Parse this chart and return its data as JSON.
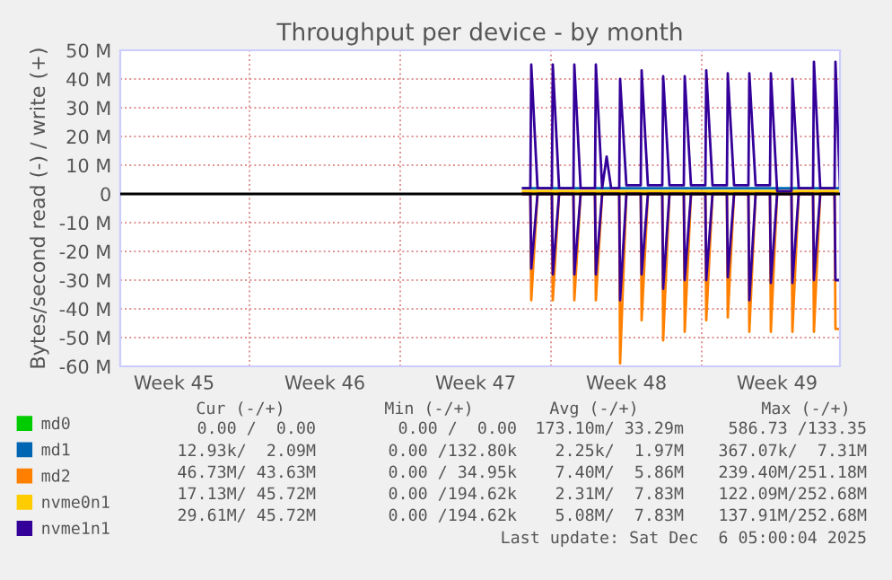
{
  "chart_data": {
    "type": "line",
    "title": "Throughput per device - by month",
    "ylabel": "Bytes/second read (-) / write (+)",
    "xlim": [
      "2025-11-02T19:00",
      "2025-12-06T05:00"
    ],
    "ylim": [
      -60,
      50
    ],
    "xticks": [
      {
        "value": "2025-11-05T07:00",
        "label": "Week 45"
      },
      {
        "value": "2025-11-08T19:00",
        "label": null
      },
      {
        "value": "2025-11-12T07:00",
        "label": "Week 46"
      },
      {
        "value": "2025-11-15T19:00",
        "label": null
      },
      {
        "value": "2025-11-19T07:00",
        "label": "Week 47"
      },
      {
        "value": "2025-11-22T19:00",
        "label": null
      },
      {
        "value": "2025-11-26T07:00",
        "label": "Week 48"
      },
      {
        "value": "2025-11-29T19:00",
        "label": null
      },
      {
        "value": "2025-12-03T07:00",
        "label": "Week 49"
      }
    ],
    "yticks": [
      {
        "value": -60,
        "label": "-60 M"
      },
      {
        "value": -50,
        "label": "-50 M"
      },
      {
        "value": -40,
        "label": "-40 M"
      },
      {
        "value": -30,
        "label": "-30 M"
      },
      {
        "value": -20,
        "label": "-20 M"
      },
      {
        "value": -10,
        "label": "-10 M"
      },
      0,
      {
        "value": 10,
        "label": "10 M"
      },
      {
        "value": 20,
        "label": "20 M"
      },
      {
        "value": 30,
        "label": "30 M"
      },
      {
        "value": 40,
        "label": "40 M"
      },
      {
        "value": 50,
        "label": "50 M"
      }
    ],
    "grid": true,
    "legend": "bottom left",
    "ref_lines": [
      {
        "axis": "y",
        "value": 0,
        "color": "#000000"
      }
    ],
    "series": [
      {
        "name": "md0",
        "color": "#00cc00"
      },
      {
        "name": "md1",
        "color": "#0066b3",
        "x": [
          "2025-11-21T12:00",
          "2025-12-06T05:00"
        ],
        "values": [
          2,
          2
        ]
      },
      {
        "name": "md2",
        "color": "#ff8000",
        "x": [
          "2025-11-21T12:00",
          "2025-12-06T05:00"
        ],
        "values": [
          0.5,
          0.5
        ]
      },
      {
        "name": "nvme0n1",
        "color": "#ffcc00",
        "x": [
          "2025-11-21T12:00",
          "2025-12-06T05:00"
        ],
        "values": [
          1,
          1
        ]
      },
      {
        "name": "nvme1n1",
        "color": "#330099",
        "x": [
          "2025-11-21T12:00",
          "2025-11-21T20:00",
          "2025-11-21T21:00",
          "2025-11-22T04:00",
          "2025-11-22T20:00",
          "2025-11-22T21:00",
          "2025-11-23T04:00",
          "2025-11-23T20:00",
          "2025-11-23T21:00",
          "2025-11-24T04:00",
          "2025-11-24T20:00",
          "2025-11-24T21:00",
          "2025-11-25T04:00",
          "2025-11-25T09:00",
          "2025-11-25T14:00",
          "2025-11-25T23:00",
          "2025-11-26T00:00",
          "2025-11-26T07:00",
          "2025-11-26T23:00",
          "2025-11-27T00:00",
          "2025-11-27T07:00",
          "2025-11-27T23:00",
          "2025-11-28T00:00",
          "2025-11-28T07:00",
          "2025-11-28T23:00",
          "2025-11-29T00:00",
          "2025-11-29T07:00",
          "2025-11-29T23:00",
          "2025-11-30T00:00",
          "2025-11-30T07:00",
          "2025-11-30T23:00",
          "2025-12-01T00:00",
          "2025-12-01T07:00",
          "2025-12-01T23:00",
          "2025-12-02T00:00",
          "2025-12-02T07:00",
          "2025-12-02T23:00",
          "2025-12-03T00:00",
          "2025-12-03T07:00",
          "2025-12-03T23:00",
          "2025-12-04T00:00",
          "2025-12-04T07:00",
          "2025-12-04T23:00",
          "2025-12-05T00:00",
          "2025-12-05T07:00",
          "2025-12-05T23:00",
          "2025-12-06T00:00",
          "2025-12-06T05:00"
        ],
        "values": [
          2,
          2,
          45,
          2,
          2,
          45,
          2,
          2,
          45,
          2,
          2,
          45,
          2,
          13,
          2,
          2,
          40,
          3,
          3,
          43,
          3,
          3,
          41,
          3,
          3,
          41,
          3,
          3,
          43,
          3,
          3,
          42,
          3,
          3,
          42,
          3,
          3,
          42,
          1,
          1,
          40,
          2,
          2,
          46,
          2,
          2,
          46,
          2
        ]
      },
      {
        "color": "#ff8000",
        "x": [
          "2025-11-21T12:00",
          "2025-11-21T20:00",
          "2025-11-21T21:00",
          "2025-11-22T04:00",
          "2025-11-22T20:00",
          "2025-11-22T21:00",
          "2025-11-23T04:00",
          "2025-11-23T20:00",
          "2025-11-23T21:00",
          "2025-11-24T04:00",
          "2025-11-24T20:00",
          "2025-11-24T21:00",
          "2025-11-25T04:00",
          "2025-11-25T23:00",
          "2025-11-26T00:00",
          "2025-11-26T07:00",
          "2025-11-26T23:00",
          "2025-11-27T00:00",
          "2025-11-27T07:00",
          "2025-11-27T23:00",
          "2025-11-28T00:00",
          "2025-11-28T07:00",
          "2025-11-28T23:00",
          "2025-11-29T00:00",
          "2025-11-29T07:00",
          "2025-11-29T23:00",
          "2025-11-30T00:00",
          "2025-11-30T07:00",
          "2025-11-30T23:00",
          "2025-12-01T00:00",
          "2025-12-01T07:00",
          "2025-12-01T23:00",
          "2025-12-02T00:00",
          "2025-12-02T07:00",
          "2025-12-02T23:00",
          "2025-12-03T00:00",
          "2025-12-03T07:00",
          "2025-12-03T23:00",
          "2025-12-04T00:00",
          "2025-12-04T07:00",
          "2025-12-04T23:00",
          "2025-12-05T00:00",
          "2025-12-05T07:00",
          "2025-12-05T23:00",
          "2025-12-06T00:00",
          "2025-12-06T05:00"
        ],
        "values": [
          0,
          0,
          -37,
          0,
          0,
          -37,
          0,
          0,
          -37,
          0,
          0,
          -37,
          0,
          0,
          -59,
          0,
          0,
          -44,
          0,
          0,
          -51,
          0,
          0,
          -48,
          0,
          0,
          -44,
          0,
          0,
          -43,
          0,
          0,
          -48,
          0,
          0,
          -48,
          0,
          0,
          -48,
          0,
          0,
          -48,
          0,
          0,
          -47,
          -47
        ]
      },
      {
        "color": "#330099",
        "x": [
          "2025-11-21T12:00",
          "2025-11-21T20:00",
          "2025-11-21T21:00",
          "2025-11-22T04:00",
          "2025-11-22T20:00",
          "2025-11-22T21:00",
          "2025-11-23T04:00",
          "2025-11-23T20:00",
          "2025-11-23T21:00",
          "2025-11-24T04:00",
          "2025-11-24T20:00",
          "2025-11-24T21:00",
          "2025-11-25T04:00",
          "2025-11-25T23:00",
          "2025-11-26T00:00",
          "2025-11-26T07:00",
          "2025-11-26T23:00",
          "2025-11-27T00:00",
          "2025-11-27T07:00",
          "2025-11-27T23:00",
          "2025-11-28T00:00",
          "2025-11-28T07:00",
          "2025-11-28T23:00",
          "2025-11-29T00:00",
          "2025-11-29T07:00",
          "2025-11-29T23:00",
          "2025-11-30T00:00",
          "2025-11-30T07:00",
          "2025-11-30T23:00",
          "2025-12-01T00:00",
          "2025-12-01T07:00",
          "2025-12-01T23:00",
          "2025-12-02T00:00",
          "2025-12-02T07:00",
          "2025-12-02T23:00",
          "2025-12-03T00:00",
          "2025-12-03T07:00",
          "2025-12-03T23:00",
          "2025-12-04T00:00",
          "2025-12-04T07:00",
          "2025-12-04T23:00",
          "2025-12-05T00:00",
          "2025-12-05T07:00",
          "2025-12-05T23:00",
          "2025-12-06T00:00",
          "2025-12-06T05:00"
        ],
        "values": [
          0,
          0,
          -26,
          0,
          0,
          -28,
          0,
          0,
          -28,
          0,
          0,
          -28,
          0,
          0,
          -37,
          0,
          0,
          -28,
          0,
          0,
          -33,
          0,
          0,
          -30,
          0,
          0,
          -30,
          0,
          0,
          -29,
          0,
          0,
          -37,
          0,
          0,
          -31,
          0,
          0,
          -31,
          0,
          0,
          -30,
          0,
          0,
          -30,
          -30
        ]
      }
    ],
    "annotations": [
      "Cur (-/+)",
      "Min (-/+)",
      "Avg (-/+)",
      "Max (-/+)",
      "0.00 /  0.00",
      "0.00 /  0.00",
      "173.10m/ 33.29m",
      "586.73 /133.35",
      "12.93k/  2.09M",
      "0.00 /132.80k",
      "2.25k/  1.97M",
      "367.07k/  7.31M",
      "46.73M/ 43.63M",
      "0.00 / 34.95k",
      "7.40M/  5.86M",
      "239.40M/251.18M",
      "17.13M/ 45.72M",
      "0.00 /194.62k",
      "2.31M/  7.83M",
      "122.09M/252.68M",
      "29.61M/ 45.72M",
      "0.00 /194.62k",
      "5.08M/  7.83M",
      "137.91M/252.68M",
      "Last update: Sat Dec  6 05:00:04 2025"
    ]
  }
}
